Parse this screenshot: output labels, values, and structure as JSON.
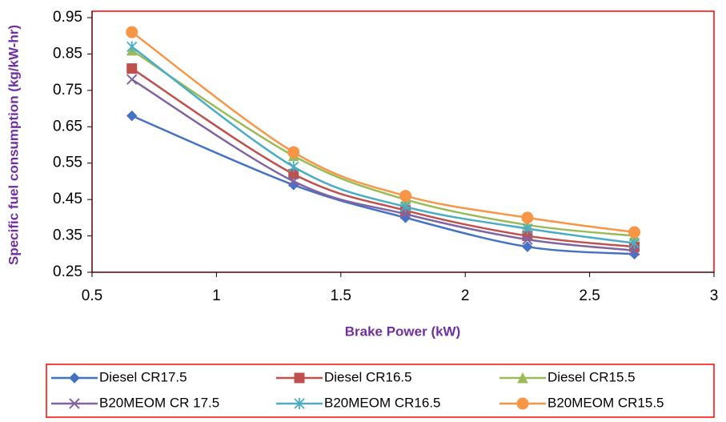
{
  "chart_data": {
    "type": "line",
    "xlabel": "Brake Power (kW)",
    "ylabel": "Specific fuel consumption (kg/kW-hr)",
    "x": [
      0.66,
      1.31,
      1.76,
      2.25,
      2.68
    ],
    "series": [
      {
        "name": "Diesel CR17.5",
        "color": "#4472c4",
        "marker": "diamond",
        "values": [
          0.68,
          0.49,
          0.4,
          0.32,
          0.3
        ]
      },
      {
        "name": "Diesel CR16.5",
        "color": "#c0504d",
        "marker": "square",
        "values": [
          0.81,
          0.52,
          0.42,
          0.35,
          0.32
        ]
      },
      {
        "name": "Diesel CR15.5",
        "color": "#9bbb59",
        "marker": "triangle",
        "values": [
          0.86,
          0.57,
          0.45,
          0.38,
          0.35
        ]
      },
      {
        "name": "B20MEOM CR 17.5",
        "color": "#8064a2",
        "marker": "x",
        "values": [
          0.78,
          0.5,
          0.41,
          0.34,
          0.31
        ]
      },
      {
        "name": "B20MEOM CR16.5",
        "color": "#4bacc6",
        "marker": "star",
        "values": [
          0.87,
          0.54,
          0.43,
          0.37,
          0.33
        ]
      },
      {
        "name": "B20MEOM CR15.5",
        "color": "#f79646",
        "marker": "circle",
        "values": [
          0.91,
          0.58,
          0.46,
          0.4,
          0.36
        ]
      }
    ],
    "xlim": [
      0.5,
      3
    ],
    "xticks": [
      0.5,
      1,
      1.5,
      2,
      2.5,
      3
    ],
    "ylim": [
      0.25,
      0.95
    ],
    "yticks": [
      0.25,
      0.35,
      0.45,
      0.55,
      0.65,
      0.75,
      0.85,
      0.95
    ],
    "smooth": true,
    "legend": "bottom"
  }
}
